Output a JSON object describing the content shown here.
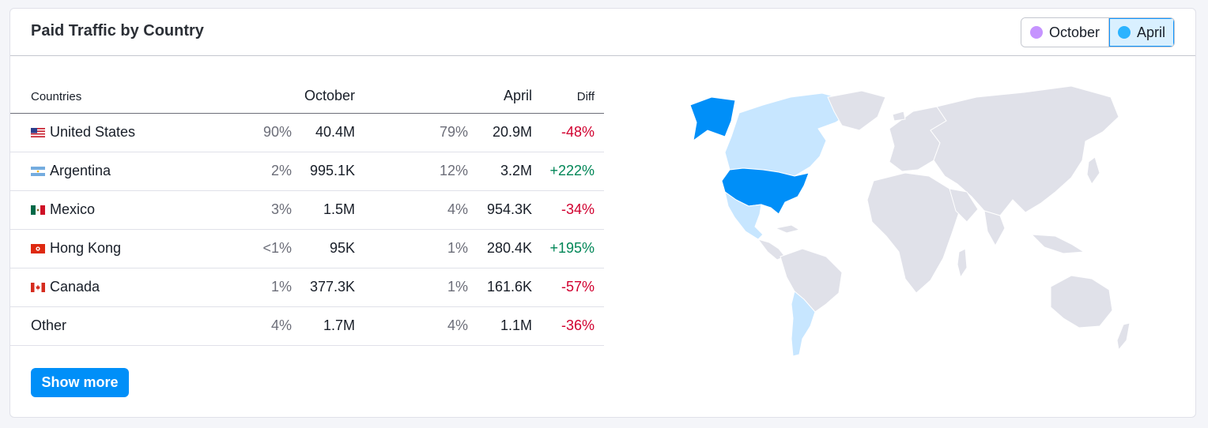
{
  "widget": {
    "title": "Paid Traffic by Country",
    "legend": [
      {
        "label": "October",
        "color": "#c694ff",
        "active": false
      },
      {
        "label": "April",
        "color": "#2bb3ff",
        "active": true
      }
    ]
  },
  "table": {
    "headers": {
      "country": "Countries",
      "october": "October",
      "april": "April",
      "diff": "Diff"
    },
    "rows": [
      {
        "country": "United States",
        "flag": "us-flag-icon",
        "oct_share": "90%",
        "oct_value": "40.4M",
        "apr_share": "79%",
        "apr_value": "20.9M",
        "diff": "-48%",
        "trend": "negative"
      },
      {
        "country": "Argentina",
        "flag": "ar-flag-icon",
        "oct_share": "2%",
        "oct_value": "995.1K",
        "apr_share": "12%",
        "apr_value": "3.2M",
        "diff": "+222%",
        "trend": "positive"
      },
      {
        "country": "Mexico",
        "flag": "mx-flag-icon",
        "oct_share": "3%",
        "oct_value": "1.5M",
        "apr_share": "4%",
        "apr_value": "954.3K",
        "diff": "-34%",
        "trend": "negative"
      },
      {
        "country": "Hong Kong",
        "flag": "hk-flag-icon",
        "oct_share": "<1%",
        "oct_value": "95K",
        "apr_share": "1%",
        "apr_value": "280.4K",
        "diff": "+195%",
        "trend": "positive"
      },
      {
        "country": "Canada",
        "flag": "ca-flag-icon",
        "oct_share": "1%",
        "oct_value": "377.3K",
        "apr_share": "1%",
        "apr_value": "161.6K",
        "diff": "-57%",
        "trend": "negative"
      },
      {
        "country": "Other",
        "flag": "",
        "oct_share": "4%",
        "oct_value": "1.7M",
        "apr_share": "4%",
        "apr_value": "1.1M",
        "diff": "-36%",
        "trend": "negative"
      }
    ]
  },
  "actions": {
    "show_more": "Show more"
  },
  "map": {
    "highlight_colors": {
      "strong": "#008ff8",
      "light": "#c7e6ff",
      "base": "#e0e1e9"
    },
    "strong_countries": [
      "United States",
      "Alaska"
    ],
    "light_countries": [
      "Canada",
      "Mexico",
      "Argentina"
    ]
  }
}
